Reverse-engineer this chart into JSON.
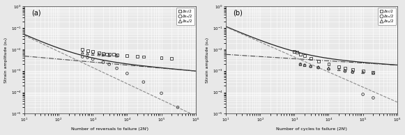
{
  "panel_a": {
    "label": "(a)",
    "xlabel": "Number of reversals to failure (2Nⁱ)",
    "ylabel": "Strain amplitude (εₐ)",
    "xlim": [
      10,
      1000000
    ],
    "ylim": [
      1e-05,
      1
    ],
    "cm_params": {
      "sigma_f": 1.0,
      "b": -0.14,
      "eps_f": 0.25,
      "c": -0.75,
      "E": 150
    },
    "data_total_x": [
      500,
      700,
      1000,
      1500,
      2000,
      2500,
      3000,
      4000,
      5000,
      10000,
      20000,
      30000,
      100000,
      200000
    ],
    "data_total_y": [
      0.01,
      0.0085,
      0.008,
      0.007,
      0.0065,
      0.006,
      0.0058,
      0.0057,
      0.0055,
      0.005,
      0.0047,
      0.0045,
      0.004,
      0.0038
    ],
    "data_elastic_x": [
      500,
      700,
      1000,
      2000,
      3000,
      5000,
      10000,
      30000,
      100000,
      300000
    ],
    "data_elastic_y": [
      0.0045,
      0.0042,
      0.0035,
      0.0025,
      0.002,
      0.0013,
      0.00075,
      0.0003,
      9e-05,
      2e-05
    ],
    "data_plastic_x": [
      500,
      700,
      1000,
      1500,
      2000,
      3000,
      5000
    ],
    "data_plastic_y": [
      0.007,
      0.0063,
      0.006,
      0.0058,
      0.0055,
      0.0053,
      0.005
    ],
    "legend": [
      "Δεₜ/2",
      "Δεₑ/2",
      "Δεₚ/2"
    ]
  },
  "panel_b": {
    "label": "(b)",
    "xlabel": "Number of cycles to failure (2Nⁱ)",
    "ylabel": "Strain amplitude (εₐ)",
    "xlim": [
      10,
      1000000
    ],
    "ylim": [
      1e-05,
      1
    ],
    "cm_params": {
      "sigma_f": 0.4,
      "b": -0.1,
      "eps_f": 0.55,
      "c": -0.7,
      "E": 55
    },
    "data_total_x": [
      1000,
      1200,
      1500,
      2000,
      3000,
      5000,
      10000,
      20000,
      30000,
      50000,
      100000,
      200000
    ],
    "data_total_y": [
      0.008,
      0.0072,
      0.006,
      0.005,
      0.0038,
      0.0027,
      0.002,
      0.00155,
      0.00135,
      0.00115,
      0.00095,
      0.00082
    ],
    "data_elastic_x": [
      1500,
      2000,
      3000,
      5000,
      10000,
      30000,
      50000,
      100000,
      200000
    ],
    "data_elastic_y": [
      0.002,
      0.0018,
      0.0016,
      0.0014,
      0.0012,
      0.00095,
      0.00085,
      8e-05,
      5.5e-05
    ],
    "data_plastic_x": [
      1500,
      2000,
      3000,
      5000,
      10000,
      20000,
      30000,
      50000,
      100000,
      200000
    ],
    "data_plastic_y": [
      0.002,
      0.0018,
      0.00165,
      0.00148,
      0.0013,
      0.00115,
      0.00105,
      0.00095,
      0.00085,
      0.00078
    ],
    "legend": [
      "Δεₜ/2",
      "Δεₑ/2",
      "Δεₚ/2"
    ]
  },
  "fig_bg": "#e8e8e8",
  "ax_bg": "#e8e8e8",
  "grid_color": "#ffffff",
  "line_total_color": "#222222",
  "line_elastic_color": "#444444",
  "line_plastic_color": "#888888",
  "marker_color": "#333333"
}
